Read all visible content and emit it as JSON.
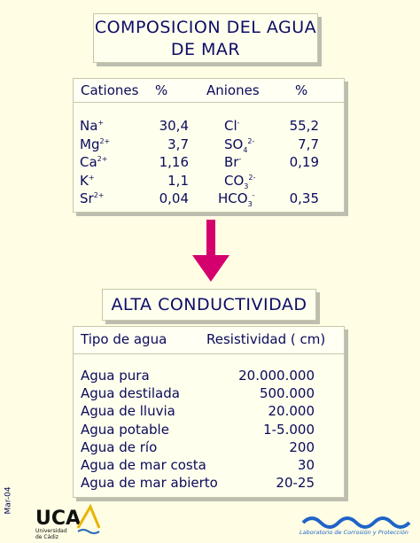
{
  "title": [
    "COMPOSICION DEL AGUA",
    "DE MAR"
  ],
  "composition": {
    "header": [
      "Cationes",
      "%",
      "Aniones",
      "%"
    ],
    "rows": [
      {
        "cation": {
          "symbol": "Na",
          "charge": "+"
        },
        "cation_pct": "30,4",
        "anion": {
          "symbol": "Cl",
          "charge": "-"
        },
        "anion_pct": "55,2"
      },
      {
        "cation": {
          "symbol": "Mg",
          "charge": "2+"
        },
        "cation_pct": "3,7",
        "anion": {
          "symbol": "SO",
          "sub": "4",
          "charge": "2-"
        },
        "anion_pct": "7,7"
      },
      {
        "cation": {
          "symbol": "Ca",
          "charge": "2+"
        },
        "cation_pct": "1,16",
        "anion": {
          "symbol": "Br",
          "charge": "-"
        },
        "anion_pct": "0,19"
      },
      {
        "cation": {
          "symbol": "K",
          "charge": "+"
        },
        "cation_pct": "1,1",
        "anion": {
          "symbol": "CO",
          "sub": "3",
          "charge": "2-"
        }
      },
      {
        "cation": {
          "symbol": "Sr",
          "charge": "2+"
        },
        "cation_pct": "0,04",
        "anion": {
          "symbol": "HCO",
          "sub": "3",
          "charge": "-"
        },
        "anion_pct": "0,35"
      }
    ]
  },
  "subtitle": "ALTA CONDUCTIVIDAD",
  "resistivity": {
    "header": [
      "Tipo de agua",
      "Resistividad (  cm)"
    ],
    "rows": [
      [
        "Agua pura",
        "20.000.000"
      ],
      [
        "Agua destilada",
        "500.000"
      ],
      [
        "Agua de lluvia",
        "20.000"
      ],
      [
        "Agua potable",
        "1-5.000"
      ],
      [
        "Agua de río",
        "200"
      ],
      [
        "Agua de mar costa",
        "30"
      ],
      [
        "Agua de mar abierto",
        "20-25"
      ]
    ]
  },
  "footer": {
    "date": "Mar-04",
    "logo": "UCA",
    "university": [
      "Universidad",
      "de Cádiz"
    ],
    "lab": "Laboratorio de Corrosión y Protección"
  }
}
